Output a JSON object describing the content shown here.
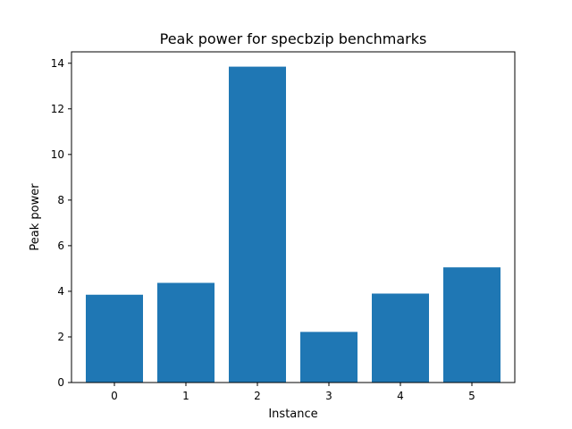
{
  "chart_data": {
    "type": "bar",
    "title": "Peak power for specbzip benchmarks",
    "xlabel": "Instance",
    "ylabel": "Peak power",
    "categories": [
      "0",
      "1",
      "2",
      "3",
      "4",
      "5"
    ],
    "values": [
      3.85,
      4.37,
      13.85,
      2.22,
      3.9,
      5.05
    ],
    "ylim": [
      0,
      14.5
    ],
    "yticks": [
      0,
      2,
      4,
      6,
      8,
      10,
      12,
      14
    ],
    "bar_color": "#1f77b4",
    "grid": false,
    "legend": "none"
  }
}
